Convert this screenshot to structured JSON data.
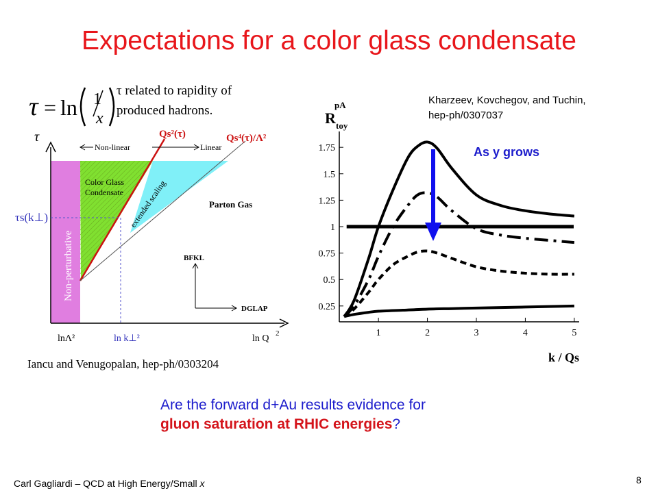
{
  "slide": {
    "title": "Expectations for a color glass condensate",
    "tau_definition_note": "τ related to rapidity of produced hadrons.",
    "question_plain": "Are the forward d+Au results evidence for ",
    "question_highlight": "gluon saturation at RHIC energies",
    "question_end": "?",
    "footer_prefix": "Carl Gagliardi – QCD at High Energy/Small ",
    "footer_x": "x",
    "page_number": "8"
  },
  "colors": {
    "title": "#e8161b",
    "non_perturbative": "#e07ee0",
    "cgc": "#80e030",
    "extended_scaling": "#80f0f8",
    "saturation_line": "#cc1111",
    "question_text": "#1c1ccc",
    "question_highlight": "#d4141b",
    "arrow": "#1010ee"
  },
  "chart_data": [
    {
      "type": "diagram",
      "x_axis_label": "ln Q",
      "x_axis_label_sup": "2",
      "y_axis_label": "τ",
      "x_ticks": [
        "lnΛ²",
        "ln k⊥²"
      ],
      "y_ticks": [
        "τs(k⊥)"
      ],
      "curve_labels": [
        "Qs²(τ)",
        "Qs⁴(τ)/Λ²"
      ],
      "regions": [
        "Non-perturbative",
        "Color Glass Condensate",
        "extended scaling",
        "Parton Gas"
      ],
      "region_text": {
        "non_perturbative": "Non-perturbative",
        "cgc_line1": "Color Glass",
        "cgc_line2": "Condensate",
        "extended_scaling": "extended scaling",
        "parton_gas": "Parton Gas"
      },
      "regime_labels": {
        "non_linear": "Non-linear",
        "linear": "Linear"
      },
      "evolution_labels": {
        "bfkl": "BFKL",
        "dglap": "DGLAP"
      },
      "reference": "Iancu and Venugopalan, hep-ph/0303204"
    },
    {
      "type": "line",
      "y_label_main": "R",
      "y_label_sub": "toy",
      "y_label_sup": "pA",
      "xlabel": "k / Qs",
      "xlim": [
        0.2,
        5.1
      ],
      "ylim": [
        0.1,
        1.9
      ],
      "x_ticks": [
        1,
        2,
        3,
        4,
        5
      ],
      "y_ticks": [
        0.25,
        0.5,
        0.75,
        1,
        1.25,
        1.5,
        1.75
      ],
      "y_tick_labels": [
        "0.25",
        "0.5",
        "0.75",
        "1",
        "1.25",
        "1.5",
        "1.75"
      ],
      "reference_value": 1,
      "series": [
        {
          "style": "solid",
          "x": [
            0.3,
            0.5,
            0.8,
            1.0,
            1.3,
            1.6,
            1.8,
            2.0,
            2.2,
            2.5,
            3.0,
            3.5,
            4.0,
            4.5,
            5.0
          ],
          "y": [
            0.15,
            0.3,
            0.7,
            1.0,
            1.35,
            1.65,
            1.76,
            1.8,
            1.74,
            1.55,
            1.3,
            1.2,
            1.15,
            1.12,
            1.1
          ]
        },
        {
          "style": "dash-dot",
          "x": [
            0.3,
            0.5,
            0.8,
            1.0,
            1.3,
            1.6,
            1.8,
            2.0,
            2.2,
            2.5,
            3.0,
            3.5,
            4.0,
            4.5,
            5.0
          ],
          "y": [
            0.15,
            0.25,
            0.5,
            0.72,
            1.0,
            1.2,
            1.3,
            1.32,
            1.28,
            1.15,
            0.98,
            0.92,
            0.89,
            0.87,
            0.85
          ]
        },
        {
          "style": "dashed",
          "x": [
            0.3,
            0.5,
            0.8,
            1.0,
            1.3,
            1.6,
            1.8,
            2.0,
            2.2,
            2.5,
            3.0,
            3.5,
            4.0,
            4.5,
            5.0
          ],
          "y": [
            0.15,
            0.22,
            0.38,
            0.5,
            0.64,
            0.72,
            0.76,
            0.77,
            0.75,
            0.7,
            0.62,
            0.58,
            0.56,
            0.55,
            0.55
          ]
        },
        {
          "style": "solid",
          "x": [
            0.3,
            0.5,
            0.8,
            1.0,
            1.5,
            2.0,
            2.5,
            3.0,
            3.5,
            4.0,
            4.5,
            5.0
          ],
          "y": [
            0.15,
            0.17,
            0.19,
            0.2,
            0.21,
            0.22,
            0.225,
            0.23,
            0.235,
            0.24,
            0.245,
            0.25
          ]
        }
      ],
      "annotation": "As y grows",
      "reference": "Kharzeev, Kovchegov, and Tuchin, hep-ph/0307037"
    }
  ]
}
